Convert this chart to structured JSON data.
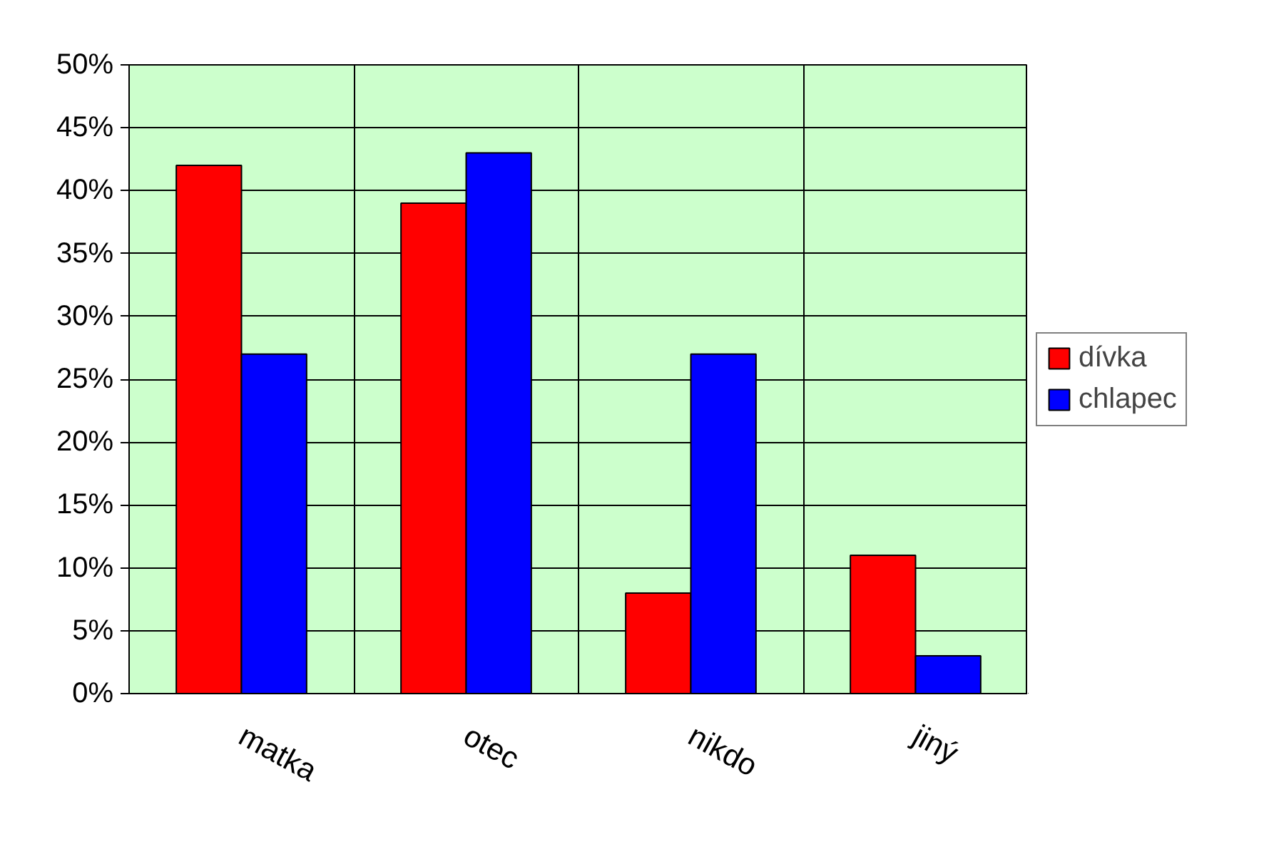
{
  "chart_data": {
    "type": "bar",
    "categories": [
      "matka",
      "otec",
      "nikdo",
      "jiný"
    ],
    "series": [
      {
        "name": "dívka",
        "color": "#ff0000",
        "values": [
          42,
          39,
          8,
          11
        ]
      },
      {
        "name": "chlapec",
        "color": "#0000ff",
        "values": [
          27,
          43,
          27,
          3
        ]
      }
    ],
    "ylim": [
      0,
      50
    ],
    "yticks": [
      {
        "value": 0,
        "label": "0%"
      },
      {
        "value": 5,
        "label": "5%"
      },
      {
        "value": 10,
        "label": "10%"
      },
      {
        "value": 15,
        "label": "15%"
      },
      {
        "value": 20,
        "label": "20%"
      },
      {
        "value": 25,
        "label": "25%"
      },
      {
        "value": 30,
        "label": "30%"
      },
      {
        "value": 35,
        "label": "35%"
      },
      {
        "value": 40,
        "label": "40%"
      },
      {
        "value": 45,
        "label": "45%"
      },
      {
        "value": 50,
        "label": "50%"
      }
    ],
    "grid": true,
    "legend": "right"
  }
}
